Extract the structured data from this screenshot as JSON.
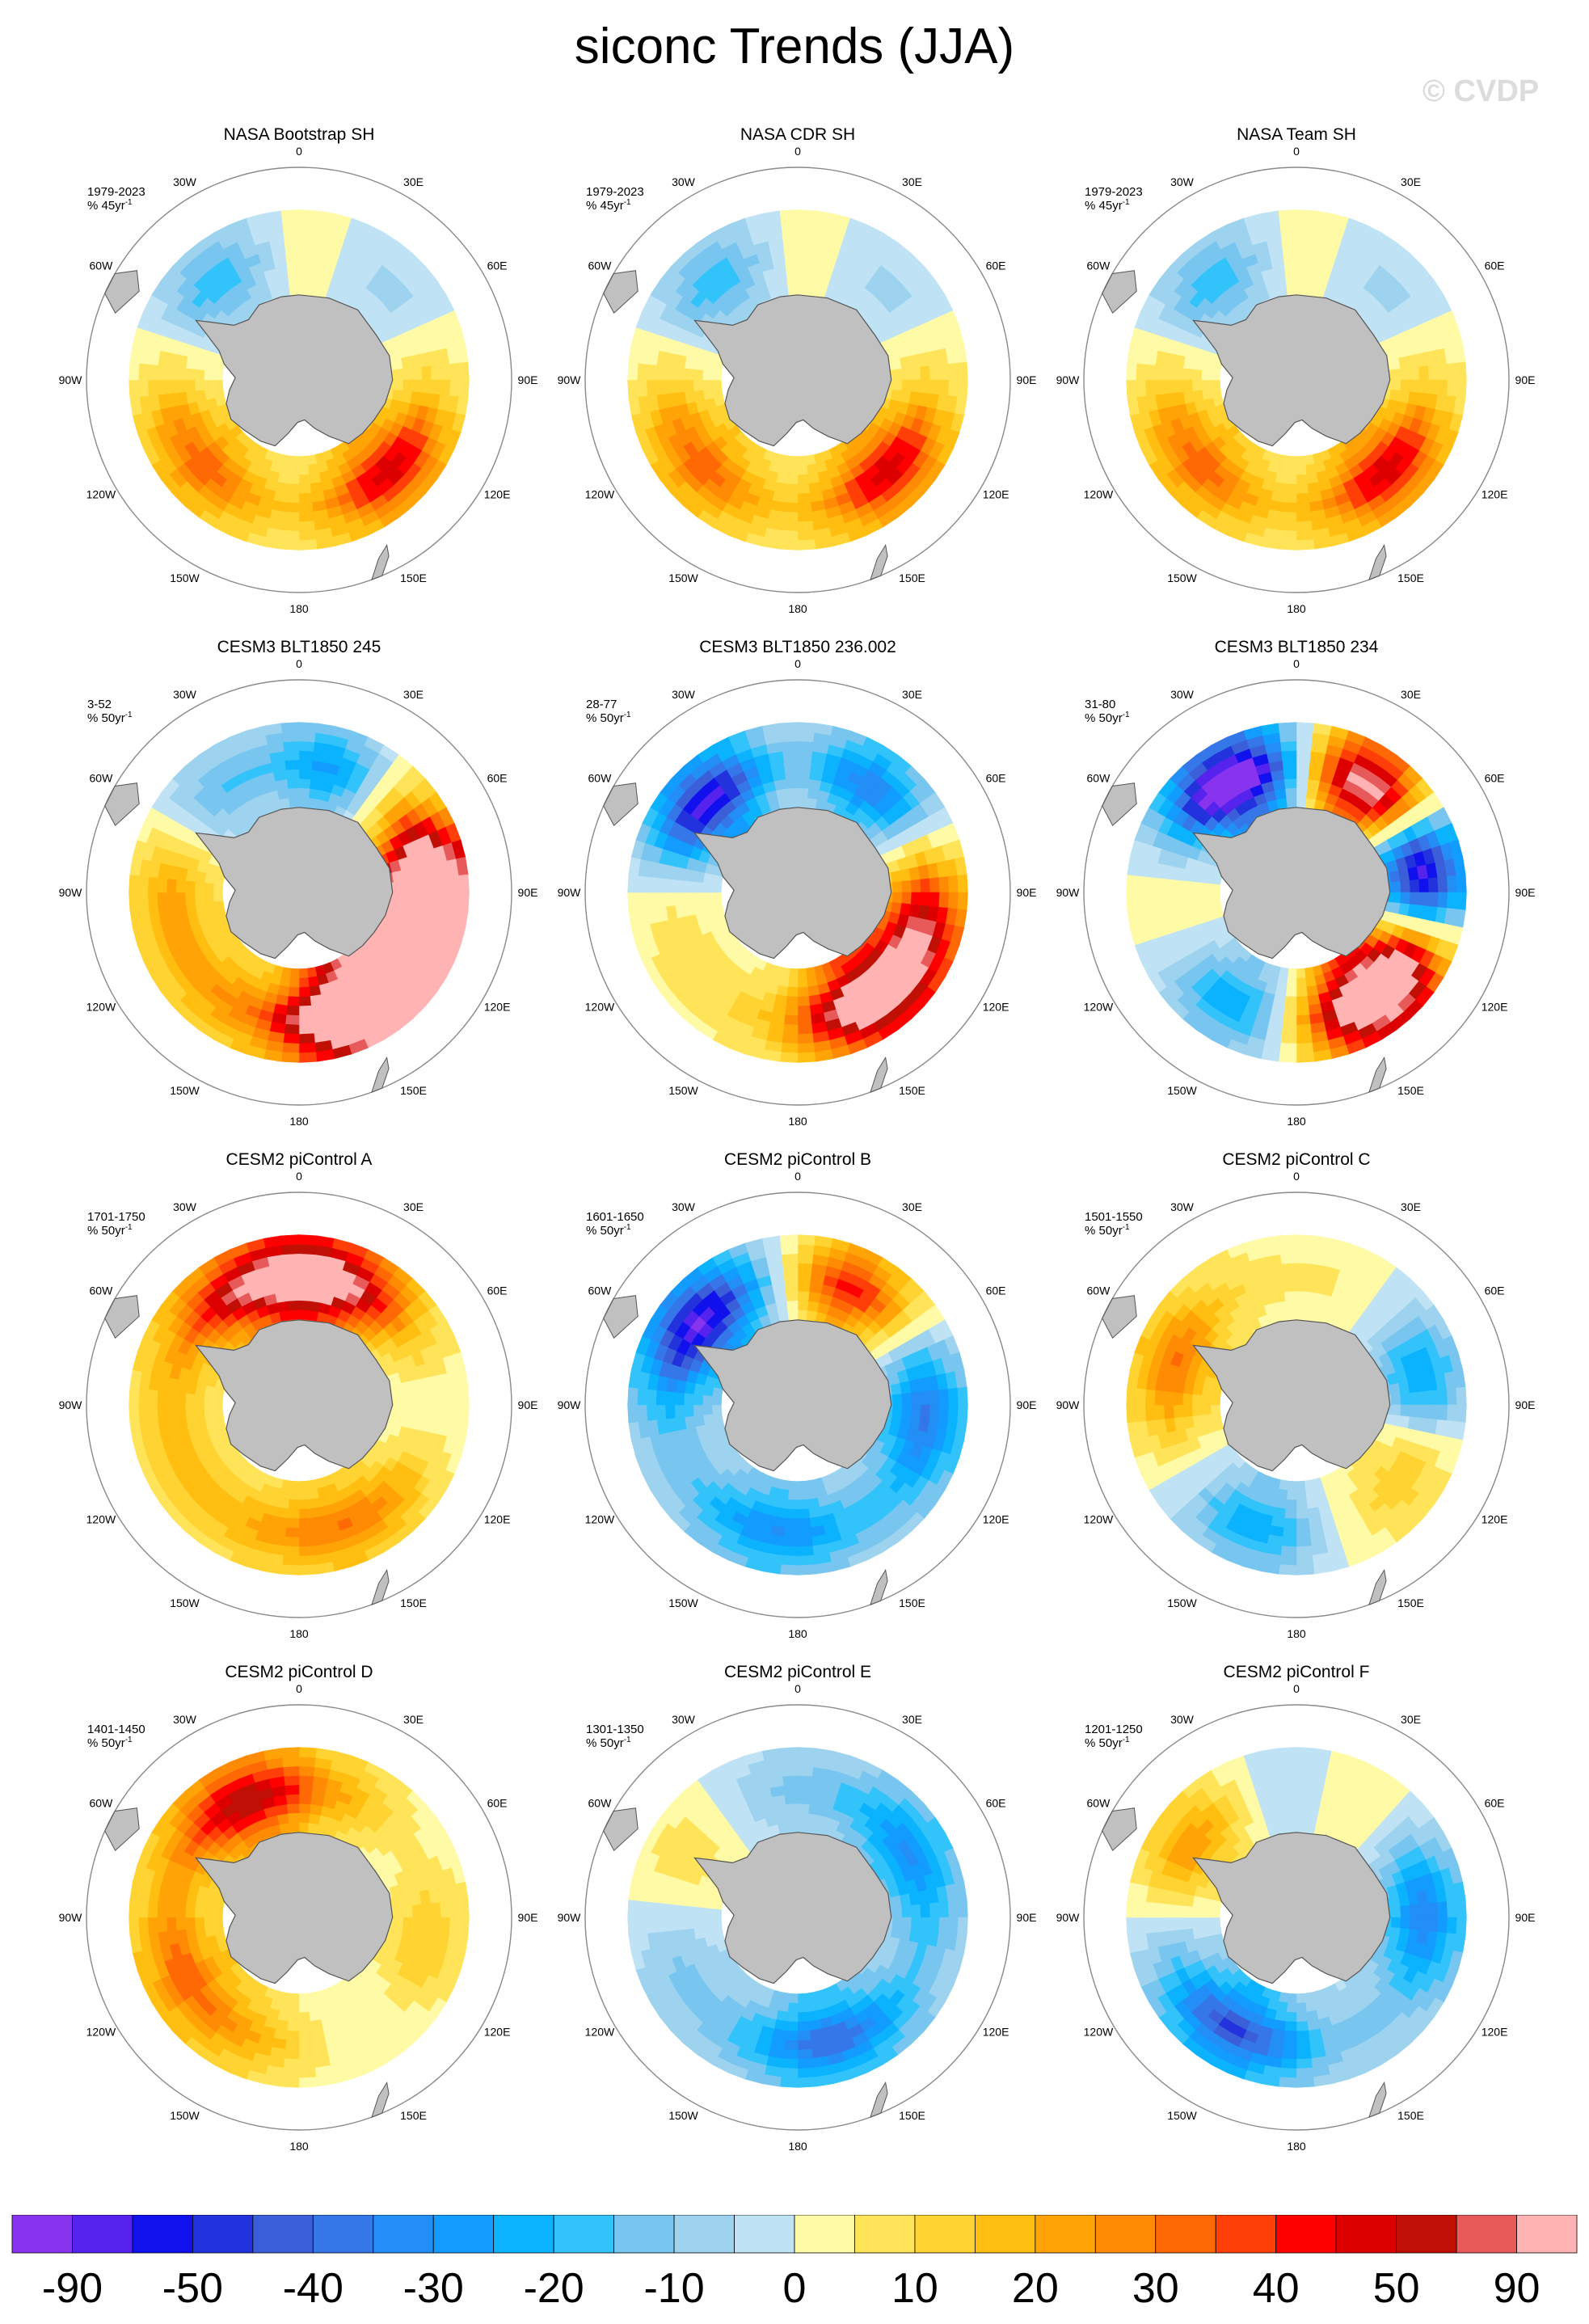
{
  "title": "siconc Trends (JJA)",
  "watermark": "© CVDP",
  "chart_data": {
    "type": "map-grid",
    "variable": "siconc",
    "season": "JJA",
    "projection": "south polar stereographic",
    "lon_labels": [
      "0",
      "30E",
      "60E",
      "90E",
      "120E",
      "150E",
      "180",
      "150W",
      "120W",
      "90W",
      "60W",
      "30W"
    ],
    "panels": [
      {
        "title": "NASA Bootstrap SH",
        "period": "1979-2023",
        "units": "% 45yr",
        "units_sup": "-1",
        "field": 0
      },
      {
        "title": "NASA CDR SH",
        "period": "1979-2023",
        "units": "% 45yr",
        "units_sup": "-1",
        "field": 0
      },
      {
        "title": "NASA Team SH",
        "period": "1979-2023",
        "units": "% 45yr",
        "units_sup": "-1",
        "field": 0
      },
      {
        "title": "CESM3 BLT1850 245",
        "period": "3-52",
        "units": "% 50yr",
        "units_sup": "-1",
        "field": 1
      },
      {
        "title": "CESM3 BLT1850 236.002",
        "period": "28-77",
        "units": "% 50yr",
        "units_sup": "-1",
        "field": 2
      },
      {
        "title": "CESM3 BLT1850 234",
        "period": "31-80",
        "units": "% 50yr",
        "units_sup": "-1",
        "field": 3
      },
      {
        "title": "CESM2 piControl A",
        "period": "1701-1750",
        "units": "% 50yr",
        "units_sup": "-1",
        "field": 4
      },
      {
        "title": "CESM2 piControl B",
        "period": "1601-1650",
        "units": "% 50yr",
        "units_sup": "-1",
        "field": 5
      },
      {
        "title": "CESM2 piControl C",
        "period": "1501-1550",
        "units": "% 50yr",
        "units_sup": "-1",
        "field": 6
      },
      {
        "title": "CESM2 piControl D",
        "period": "1401-1450",
        "units": "% 50yr",
        "units_sup": "-1",
        "field": 7
      },
      {
        "title": "CESM2 piControl E",
        "period": "1301-1350",
        "units": "% 50yr",
        "units_sup": "-1",
        "field": 8
      },
      {
        "title": "CESM2 piControl F",
        "period": "1201-1250",
        "units": "% 50yr",
        "units_sup": "-1",
        "field": 9
      }
    ],
    "fields": [
      {
        "base": 0.3,
        "amps": [
          [
            -0.9,
            320
          ],
          [
            1.3,
            135
          ],
          [
            0.8,
            230
          ],
          [
            -0.5,
            45
          ]
        ]
      },
      {
        "base": 0.8,
        "amps": [
          [
            3.0,
            150
          ],
          [
            2.0,
            110
          ],
          [
            -1.6,
            15
          ],
          [
            2.4,
            95
          ],
          [
            -1.2,
            320
          ]
        ]
      },
      {
        "base": 0.3,
        "amps": [
          [
            2.3,
            145
          ],
          [
            -2.2,
            315
          ],
          [
            -1.4,
            35
          ],
          [
            1.2,
            105
          ]
        ]
      },
      {
        "base": 0.2,
        "amps": [
          [
            3.1,
            140
          ],
          [
            2.6,
            40
          ],
          [
            -2.8,
            330
          ],
          [
            -2.8,
            75
          ],
          [
            -1.0,
            210
          ]
        ]
      },
      {
        "base": 0.6,
        "amps": [
          [
            1.8,
            10
          ],
          [
            1.0,
            335
          ],
          [
            -0.5,
            90
          ],
          [
            0.4,
            160
          ]
        ]
      },
      {
        "base": -0.4,
        "amps": [
          [
            -1.6,
            310
          ],
          [
            1.8,
            25
          ],
          [
            -0.8,
            95
          ],
          [
            -0.6,
            190
          ]
        ]
      },
      {
        "base": 0.2,
        "amps": [
          [
            -1.2,
            80
          ],
          [
            -1.0,
            200
          ],
          [
            0.8,
            290
          ],
          [
            0.5,
            110
          ]
        ]
      },
      {
        "base": 0.6,
        "amps": [
          [
            1.2,
            335
          ],
          [
            -0.6,
            150
          ],
          [
            -0.4,
            60
          ],
          [
            0.5,
            240
          ]
        ]
      },
      {
        "base": -0.4,
        "amps": [
          [
            -0.9,
            165
          ],
          [
            0.7,
            300
          ],
          [
            -0.6,
            60
          ]
        ]
      },
      {
        "base": -0.3,
        "amps": [
          [
            -1.2,
            210
          ],
          [
            1.1,
            305
          ],
          [
            -0.8,
            90
          ],
          [
            0.4,
            30
          ]
        ]
      }
    ],
    "colorbar": {
      "colors": [
        "#8833ee",
        "#5522ee",
        "#1111ee",
        "#2233dd",
        "#3b5fd8",
        "#3577e8",
        "#238ef5",
        "#139cff",
        "#0bb3ff",
        "#33c3fb",
        "#78c6f0",
        "#9dd3ee",
        "#bfe3f5",
        "#fffaa6",
        "#ffe45a",
        "#ffd331",
        "#ffbe10",
        "#ffa307",
        "#ff8a04",
        "#ff6905",
        "#ff3f07",
        "#ff0000",
        "#dd0000",
        "#c01005",
        "#e85a5a",
        "#ffb3b3"
      ],
      "tick_labels": [
        "-90",
        "-50",
        "-40",
        "-30",
        "-20",
        "-10",
        "0",
        "10",
        "20",
        "30",
        "40",
        "50",
        "90"
      ],
      "levels": [
        -90,
        -80,
        -70,
        -60,
        -50,
        -45,
        -40,
        -35,
        -30,
        -25,
        -20,
        -15,
        -10,
        -5,
        0,
        5,
        10,
        15,
        20,
        25,
        30,
        35,
        40,
        45,
        50,
        70,
        90
      ]
    }
  }
}
